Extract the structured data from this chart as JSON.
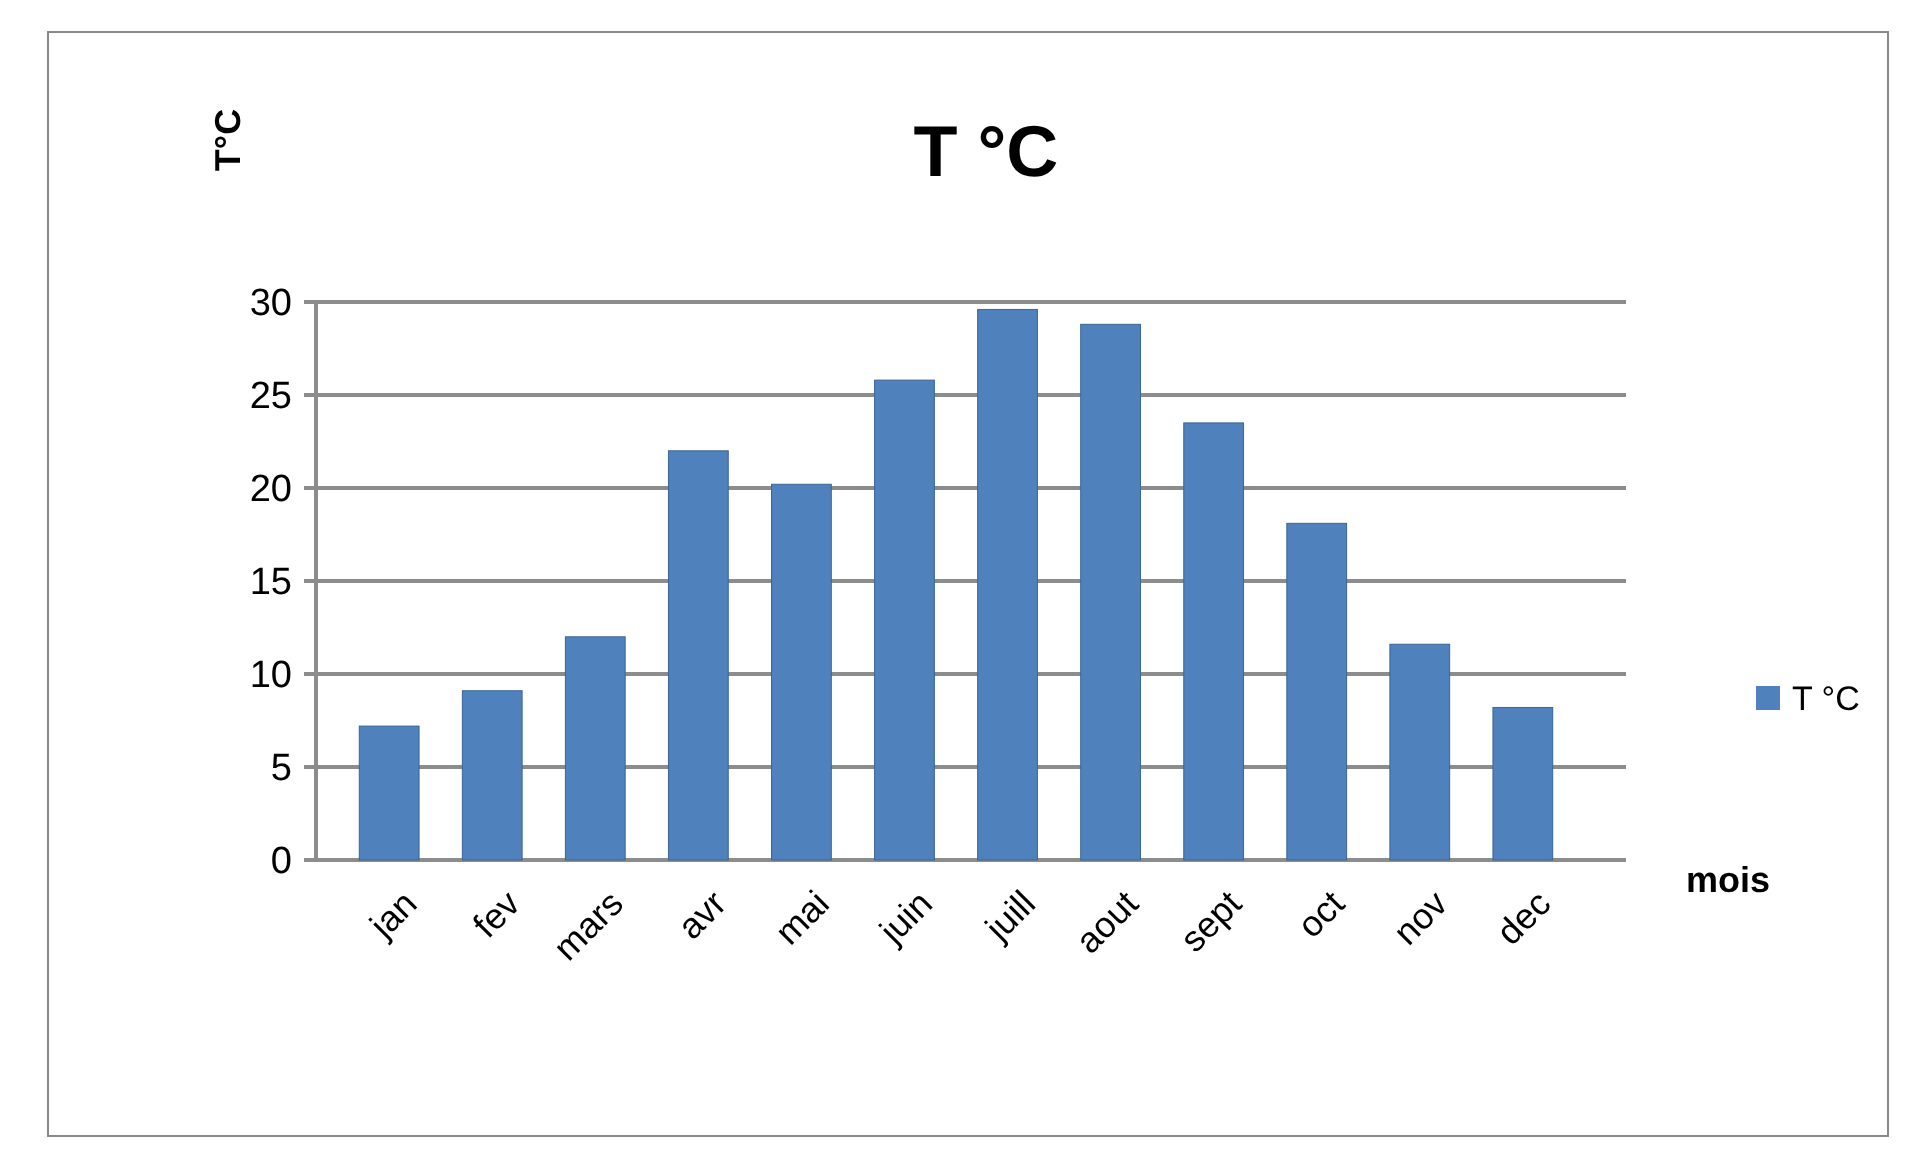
{
  "chart_data": {
    "type": "bar",
    "title": "T °C",
    "ylabel": "T°C",
    "xlabel": "mois",
    "categories": [
      "jan",
      "fev",
      "mars",
      "avr",
      "mai",
      "juin",
      "juill",
      "aout",
      "sept",
      "oct",
      "nov",
      "dec"
    ],
    "series": [
      {
        "name": "T °C",
        "color": "#4f81bd",
        "values": [
          7.2,
          9.1,
          12.0,
          22.0,
          20.2,
          25.8,
          29.6,
          28.8,
          23.5,
          18.1,
          11.6,
          8.2
        ]
      }
    ],
    "ylim": [
      0,
      30
    ],
    "yticks": [
      0,
      5,
      10,
      15,
      20,
      25,
      30
    ],
    "grid": "y",
    "legend": "right"
  }
}
